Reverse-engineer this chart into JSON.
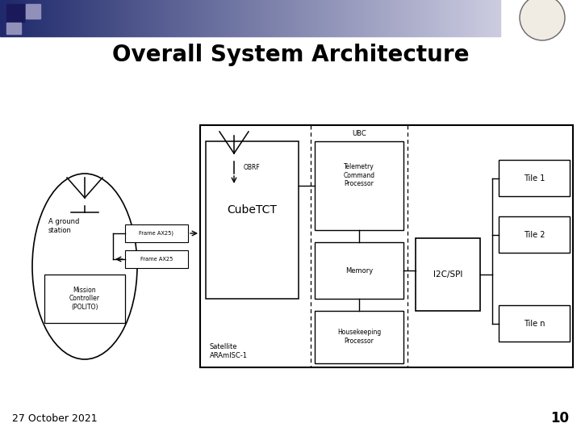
{
  "title": "Overall System Architecture",
  "title_fontsize": 20,
  "title_fontweight": "bold",
  "date_text": "27 October 2021",
  "page_num": "10",
  "bg_color": "#ffffff",
  "footer_date_fontsize": 9,
  "footer_page_fontsize": 12
}
